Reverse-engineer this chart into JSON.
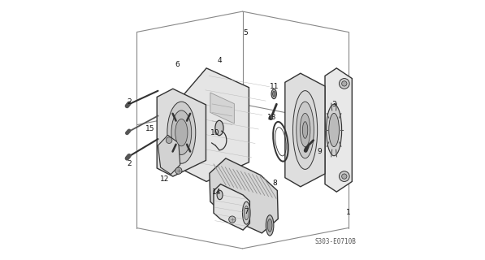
{
  "bg_color": "#ffffff",
  "line_color": "#333333",
  "diagram_ref": "S303-E0710B",
  "figsize": [
    5.97,
    3.2
  ],
  "dpi": 100
}
